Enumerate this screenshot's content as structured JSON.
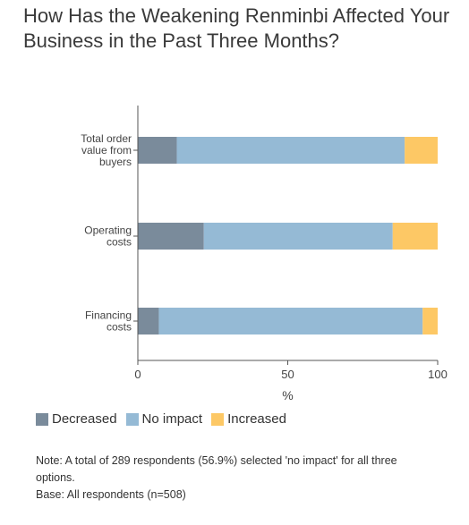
{
  "chart_data": {
    "type": "bar",
    "orientation": "horizontal",
    "stacked": true,
    "title": "How Has the Weakening Renminbi Affected Your Business in the Past Three Months?",
    "categories": [
      "Total order value from buyers",
      "Operating costs",
      "Financing costs"
    ],
    "category_lines": [
      [
        "Total order",
        "value from",
        "buyers"
      ],
      [
        "Operating",
        "costs"
      ],
      [
        "Financing",
        "costs"
      ]
    ],
    "series": [
      {
        "name": "Decreased",
        "color": "#7a8b9b",
        "values": [
          13,
          22,
          7
        ]
      },
      {
        "name": "No impact",
        "color": "#95bad5",
        "values": [
          76,
          63,
          88
        ]
      },
      {
        "name": "Increased",
        "color": "#fdc865",
        "values": [
          11,
          15,
          5
        ]
      }
    ],
    "xlim": [
      0,
      100
    ],
    "xticks": [
      "0",
      "50",
      "100"
    ],
    "xlabel": "%",
    "legend_position": "bottom-left",
    "grid": false
  },
  "note": {
    "line1": "Note: A total of 289 respondents (56.9%) selected 'no impact' for all three options.",
    "line2": "Base: All respondents (n=508)"
  }
}
